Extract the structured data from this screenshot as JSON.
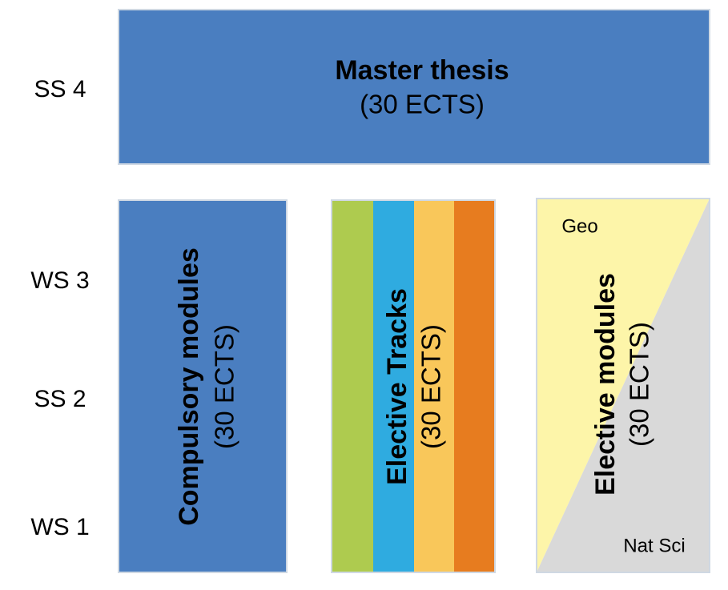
{
  "semesters": [
    "SS 4",
    "WS 3",
    "SS 2",
    "WS 1"
  ],
  "thesis": {
    "title": "Master thesis",
    "credits": "(30 ECTS)"
  },
  "compulsory": {
    "title": "Compulsory modules",
    "credits": "(30 ECTS)"
  },
  "tracks": {
    "title": "Elective Tracks",
    "credits": "(30 ECTS)"
  },
  "electives": {
    "title": "Elective modules",
    "credits": "(30 ECTS)",
    "upper": "Geo",
    "lower": "Nat Sci"
  }
}
